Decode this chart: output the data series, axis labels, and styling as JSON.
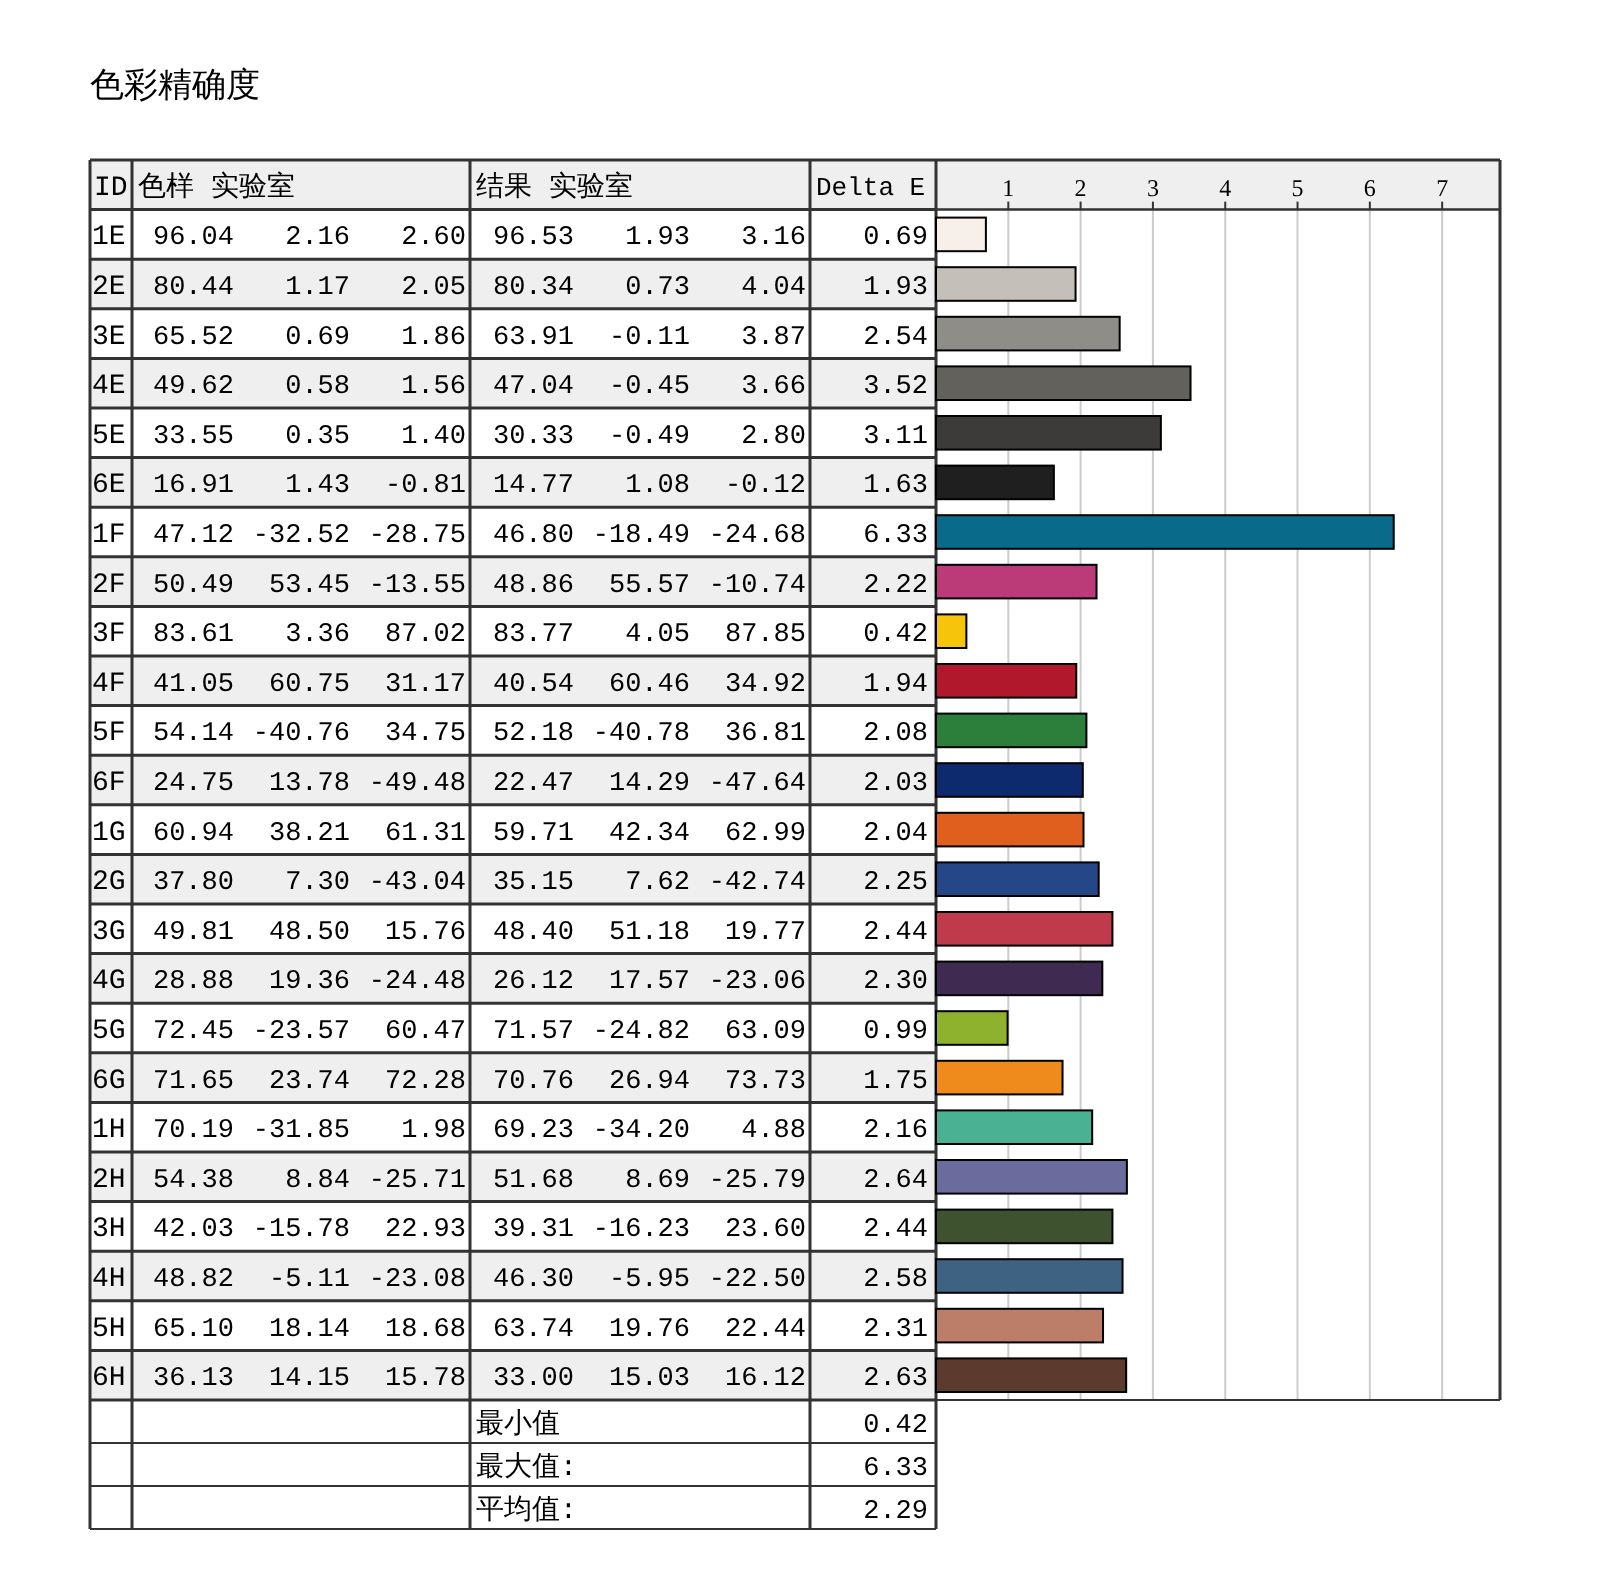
{
  "chart_data": {
    "type": "bar",
    "orientation": "horizontal",
    "title": "色彩精确度",
    "ylabel": "ID",
    "xlabel": "Delta E",
    "categories": [
      "1E",
      "2E",
      "3E",
      "4E",
      "5E",
      "6E",
      "1F",
      "2F",
      "3F",
      "4F",
      "5F",
      "6F",
      "1G",
      "2G",
      "3G",
      "4G",
      "5G",
      "6G",
      "1H",
      "2H",
      "3H",
      "4H",
      "5H",
      "6H"
    ],
    "values": [
      0.69,
      1.93,
      2.54,
      3.52,
      3.11,
      1.63,
      6.33,
      2.22,
      0.42,
      1.94,
      2.08,
      2.03,
      2.04,
      2.25,
      2.44,
      2.3,
      0.99,
      1.75,
      2.16,
      2.64,
      2.44,
      2.58,
      2.31,
      2.63
    ],
    "value_labels": [
      "0.69",
      "1.93",
      "2.54",
      "3.52",
      "3.11",
      "1.63",
      "6.33",
      "2.22",
      "0.42",
      "1.94",
      "2.08",
      "2.03",
      "2.04",
      "2.25",
      "2.44",
      "2.30",
      "0.99",
      "1.75",
      "2.16",
      "2.64",
      "2.44",
      "2.58",
      "2.31",
      "2.63"
    ],
    "colors": [
      "#f7efea",
      "#c4bfb9",
      "#8f8d88",
      "#62615c",
      "#3c3b39",
      "#1f1f1f",
      "#0a6a8a",
      "#bb3a78",
      "#f7c40c",
      "#b2182b",
      "#2b7f3a",
      "#0e2a6e",
      "#e05f1f",
      "#254788",
      "#bf3a4b",
      "#3f2a52",
      "#8fb22e",
      "#ef8a1c",
      "#4ab293",
      "#6b6b9d",
      "#3e5230",
      "#3d6282",
      "#bc7e69",
      "#5c3a2e"
    ],
    "xlim": [
      0,
      7.8
    ],
    "x2lim": [
      0,
      7.8
    ],
    "x2ticks": [
      1,
      2,
      3,
      4,
      5,
      6,
      7
    ],
    "grid": "x",
    "annotations": [
      "色样 实验室",
      "结果 实验室",
      "96.04 2.16 2.60",
      "96.53 1.93 3.16",
      "80.44 1.17 2.05",
      "80.34 0.73 4.04",
      "65.52 0.69 1.86",
      "63.91 -0.11 3.87",
      "49.62 0.58 1.56",
      "47.04 -0.45 3.66",
      "33.55 0.35 1.40",
      "30.33 -0.49 2.80",
      "16.91 1.43 -0.81",
      "14.77 1.08 -0.12",
      "47.12 -32.52 -28.75",
      "46.80 -18.49 -24.68",
      "50.49 53.45 -13.55",
      "48.86 55.57 -10.74",
      "83.61 3.36 87.02",
      "83.77 4.05 87.85",
      "41.05 60.75 31.17",
      "40.54 60.46 34.92",
      "54.14 -40.76 34.75",
      "52.18 -40.78 36.81",
      "24.75 13.78 -49.48",
      "22.47 14.29 -47.64",
      "60.94 38.21 61.31",
      "59.71 42.34 62.99",
      "37.80 7.30 -43.04",
      "35.15 7.62 -42.74",
      "49.81 48.50 15.76",
      "48.40 51.18 19.77",
      "28.88 19.36 -24.48",
      "26.12 17.57 -23.06",
      "72.45 -23.57 60.47",
      "71.57 -24.82 63.09",
      "71.65 23.74 72.28",
      "70.76 26.94 73.73",
      "70.19 -31.85 1.98",
      "69.23 -34.20 4.88",
      "54.38 8.84 -25.71",
      "51.68 8.69 -25.79",
      "42.03 -15.78 22.93",
      "39.31 -16.23 23.60",
      "48.82 -5.11 -23.08",
      "46.30 -5.95 -22.50",
      "65.10 18.14 18.68",
      "63.74 19.76 22.44",
      "36.13 14.15 15.78",
      "33.00 15.03 16.12",
      "最小值",
      "0.42",
      "最大值:",
      "6.33",
      "平均值:",
      "2.29"
    ]
  }
}
